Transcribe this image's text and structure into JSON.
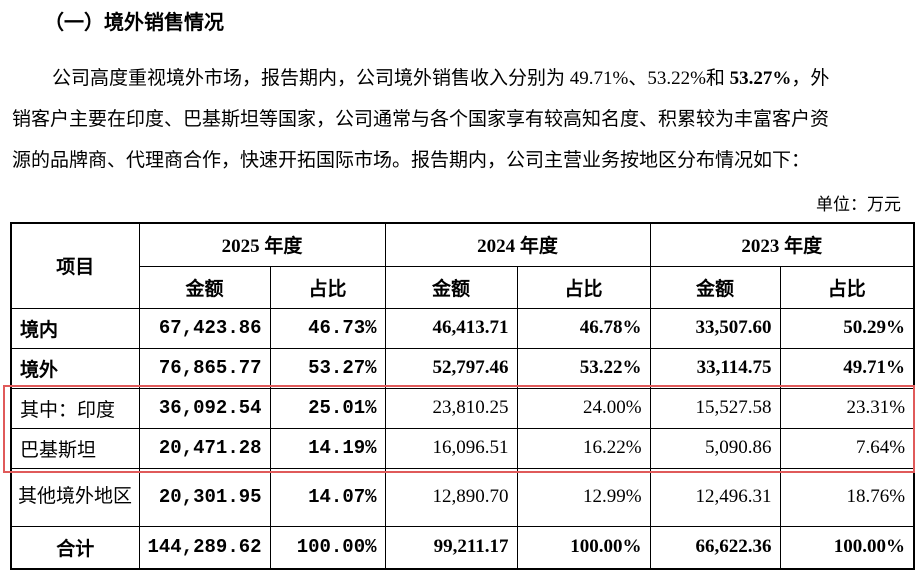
{
  "heading": "（一）境外销售情况",
  "paragraph": {
    "lines": [
      [
        "公司高度重视境外市场，报告期内，公司境外销售收入分别为 49.71%、53.22%和 ",
        "53.27%",
        "，外"
      ],
      [
        "销客户主要在印度、巴基斯坦等国家，公司通常与各个国家享有较高知名度、积累较为丰富客户资"
      ],
      [
        "源的品牌商、代理商合作，快速开拓国际市场。报告期内，公司主营业务按地区分布情况如下："
      ]
    ]
  },
  "unit": "单位：万元",
  "table": {
    "header": {
      "item": "项目",
      "years": [
        "2025 年度",
        "2024 年度",
        "2023 年度"
      ],
      "sub": [
        "金额",
        "占比",
        "金额",
        "占比",
        "金额",
        "占比"
      ]
    },
    "rows": [
      [
        "境内",
        "67,423.86",
        "46.73%",
        "46,413.71",
        "46.78%",
        "33,507.60",
        "50.29%"
      ],
      [
        "境外",
        "76,865.77",
        "53.27%",
        "52,797.46",
        "53.22%",
        "33,114.75",
        "49.71%"
      ],
      [
        "其中：印度",
        "36,092.54",
        "25.01%",
        "23,810.25",
        "24.00%",
        "15,527.58",
        "23.31%"
      ],
      [
        "巴基斯坦",
        "20,471.28",
        "14.19%",
        "16,096.51",
        "16.22%",
        "5,090.86",
        "7.64%"
      ],
      [
        "其他境外地区",
        "20,301.95",
        "14.07%",
        "12,890.70",
        "12.99%",
        "12,496.31",
        "18.76%"
      ],
      [
        "合计",
        "144,289.62",
        "100.00%",
        "99,211.17",
        "100.00%",
        "66,622.36",
        "100.00%"
      ]
    ]
  }
}
